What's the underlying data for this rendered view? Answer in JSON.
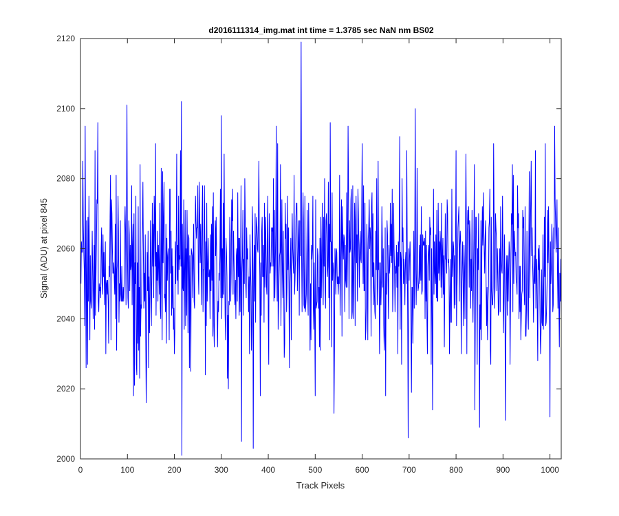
{
  "chart_data": {
    "type": "line",
    "title": "d2016111314_img.mat int time = 1.3785 sec  NaN nm BS02",
    "xlabel": "Track Pixels",
    "ylabel": "Signal (ADU) at pixel 845",
    "xlim": [
      0,
      1024
    ],
    "ylim": [
      2000,
      2120
    ],
    "xticks": [
      0,
      100,
      200,
      300,
      400,
      500,
      600,
      700,
      800,
      900,
      1000
    ],
    "yticks": [
      2000,
      2020,
      2040,
      2060,
      2080,
      2100,
      2120
    ],
    "grid": false,
    "series_color": "#0000ff",
    "series": [
      {
        "x_start": 1,
        "x_step": 1,
        "approx_mean": 2055,
        "approx_std": 13,
        "keypoints": [
          [
            1,
            2050
          ],
          [
            5,
            2085
          ],
          [
            10,
            2095
          ],
          [
            15,
            2027
          ],
          [
            37,
            2096
          ],
          [
            60,
            2033
          ],
          [
            99,
            2101
          ],
          [
            120,
            2024
          ],
          [
            140,
            2016
          ],
          [
            160,
            2090
          ],
          [
            200,
            2030
          ],
          [
            215,
            2102
          ],
          [
            216,
            2001
          ],
          [
            235,
            2025
          ],
          [
            300,
            2098
          ],
          [
            315,
            2020
          ],
          [
            343,
            2005
          ],
          [
            350,
            2080
          ],
          [
            368,
            2003
          ],
          [
            380,
            2085
          ],
          [
            420,
            2090
          ],
          [
            470,
            2119
          ],
          [
            500,
            2018
          ],
          [
            520,
            2080
          ],
          [
            540,
            2013
          ],
          [
            570,
            2095
          ],
          [
            600,
            2090
          ],
          [
            650,
            2018
          ],
          [
            680,
            2092
          ],
          [
            698,
            2006
          ],
          [
            713,
            2100
          ],
          [
            750,
            2014
          ],
          [
            800,
            2088
          ],
          [
            840,
            2014
          ],
          [
            850,
            2009
          ],
          [
            880,
            2090
          ],
          [
            905,
            2011
          ],
          [
            960,
            2085
          ],
          [
            990,
            2090
          ],
          [
            1010,
            2095
          ],
          [
            1020,
            2032
          ],
          [
            1024,
            2040
          ]
        ]
      }
    ]
  }
}
